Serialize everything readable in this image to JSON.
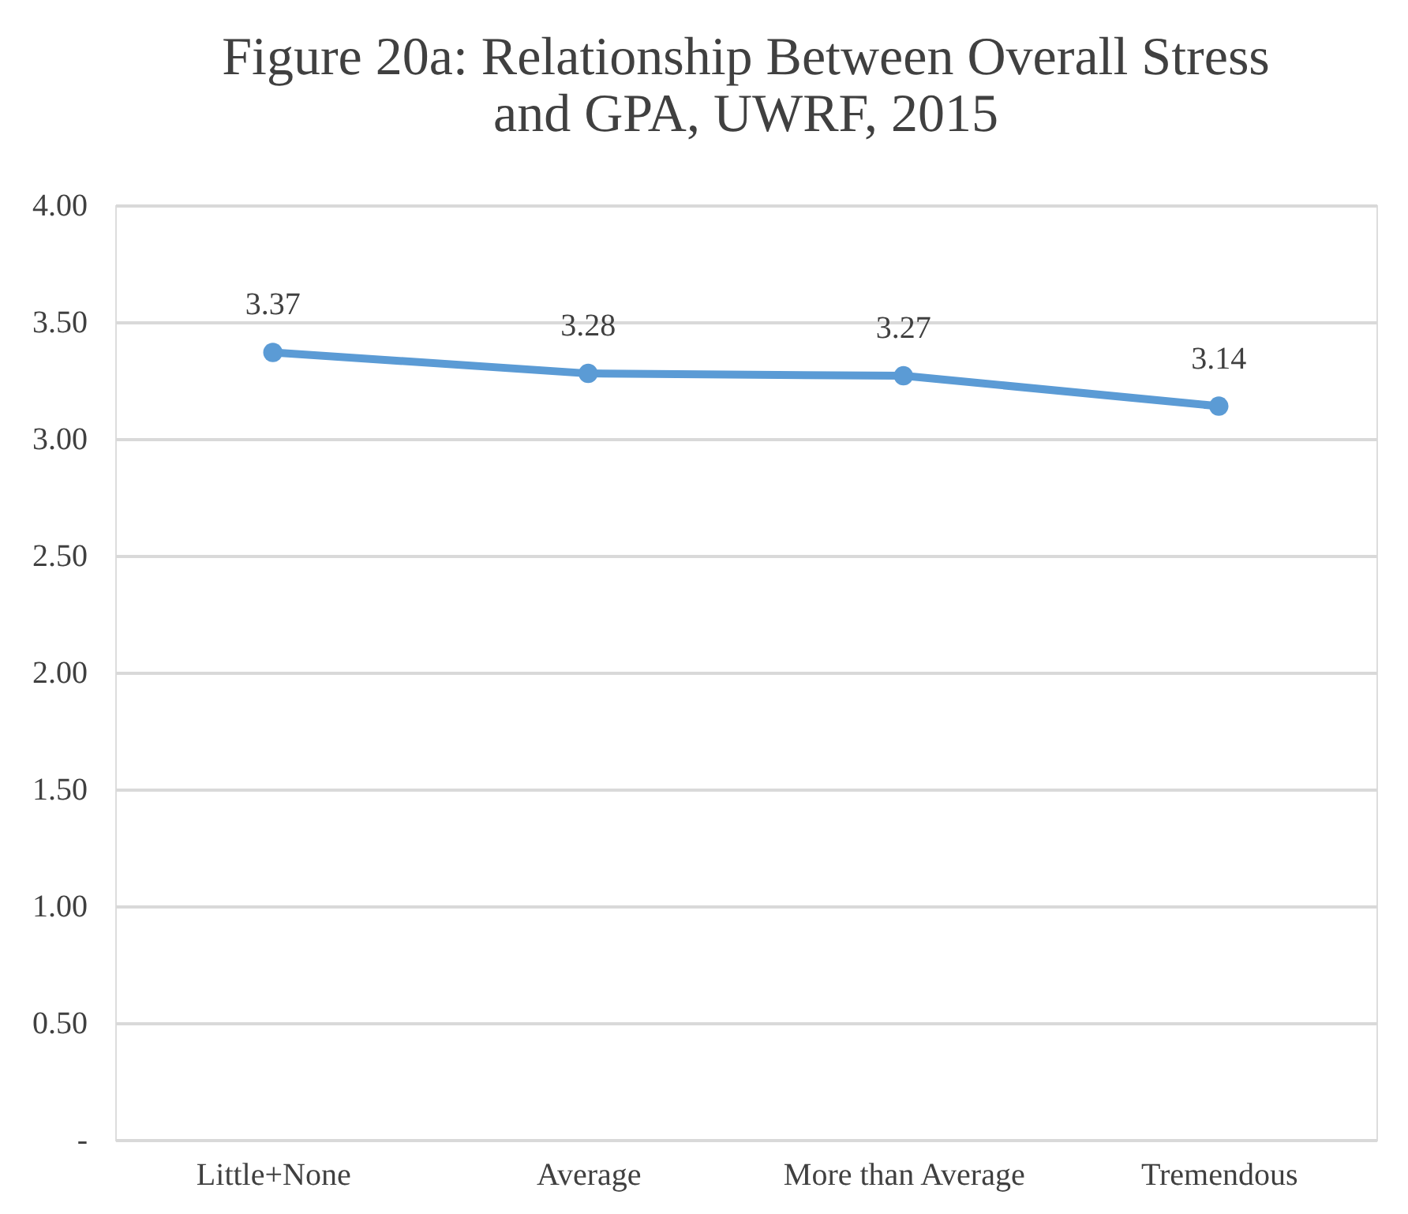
{
  "chart_data": {
    "type": "line",
    "title": "Figure 20a:  Relationship Between Overall Stress and GPA, UWRF, 2015",
    "categories": [
      "Little+None",
      "Average",
      "More than Average",
      "Tremendous"
    ],
    "series": [
      {
        "color": "#5b9bd5",
        "values": [
          3.37,
          3.28,
          3.27,
          3.14
        ]
      }
    ],
    "ylim": [
      0,
      4
    ],
    "yticks": [
      {
        "value": 0,
        "label": "-"
      },
      {
        "value": 0.5,
        "label": "0.50"
      },
      {
        "value": 1,
        "label": "1.00"
      },
      {
        "value": 1.5,
        "label": "1.50"
      },
      {
        "value": 2,
        "label": "2.00"
      },
      {
        "value": 2.5,
        "label": "2.50"
      },
      {
        "value": 3,
        "label": "3.00"
      },
      {
        "value": 3.5,
        "label": "3.50"
      },
      {
        "value": 4,
        "label": "4.00"
      }
    ],
    "grid": "y",
    "marker": "circle",
    "line_style": "solid",
    "data_labels": true
  }
}
